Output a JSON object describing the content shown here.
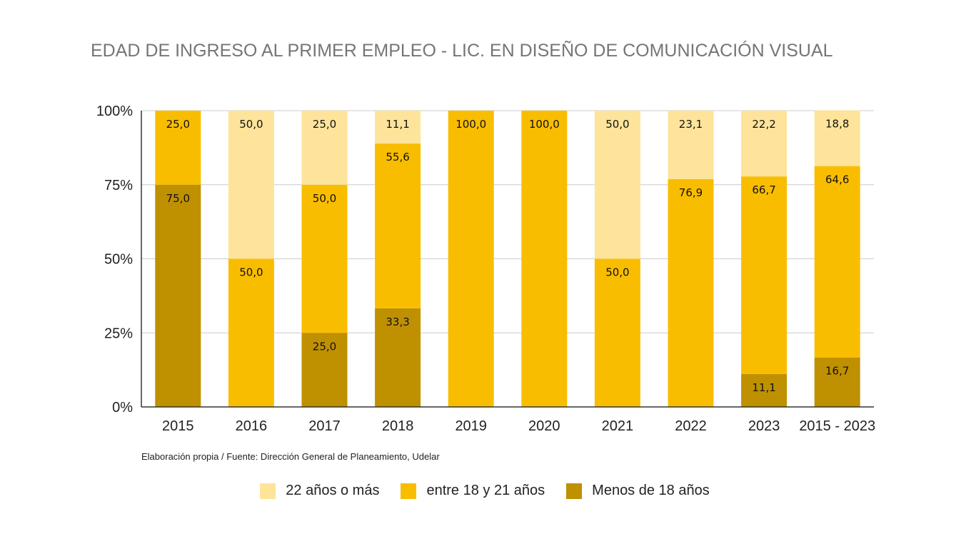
{
  "chart_data": {
    "type": "bar",
    "stacked": true,
    "normalized": true,
    "title": "EDAD DE INGRESO AL PRIMER EMPLEO - LIC. EN DISEÑO DE COMUNICACIÓN VISUAL",
    "categories": [
      "2015",
      "2016",
      "2017",
      "2018",
      "2019",
      "2020",
      "2021",
      "2022",
      "2023",
      "2015 - 2023"
    ],
    "series": [
      {
        "name": "Menos de 18 años",
        "color": "#bf9000",
        "values": [
          75.0,
          0,
          25.0,
          33.3,
          0,
          0,
          0,
          0,
          11.1,
          16.7
        ]
      },
      {
        "name": "entre 18 y 21 años",
        "color": "#f9bd00",
        "values": [
          25.0,
          50.0,
          50.0,
          55.6,
          100.0,
          100.0,
          50.0,
          76.9,
          66.7,
          64.6
        ]
      },
      {
        "name": "22 años o más",
        "color": "#fde49a",
        "values": [
          0,
          50.0,
          25.0,
          11.1,
          0,
          0,
          50.0,
          23.1,
          22.2,
          18.8
        ]
      }
    ],
    "legend_order": [
      "22 años o más",
      "entre 18 y 21 años",
      "Menos de 18 años"
    ],
    "y_ticks": [
      "0%",
      "25%",
      "50%",
      "75%",
      "100%"
    ],
    "ylim": [
      0,
      100
    ],
    "grid": true,
    "legend_position": "bottom"
  },
  "source_note": "Elaboración propia / Fuente: Dirección General de Planeamiento, Udelar"
}
